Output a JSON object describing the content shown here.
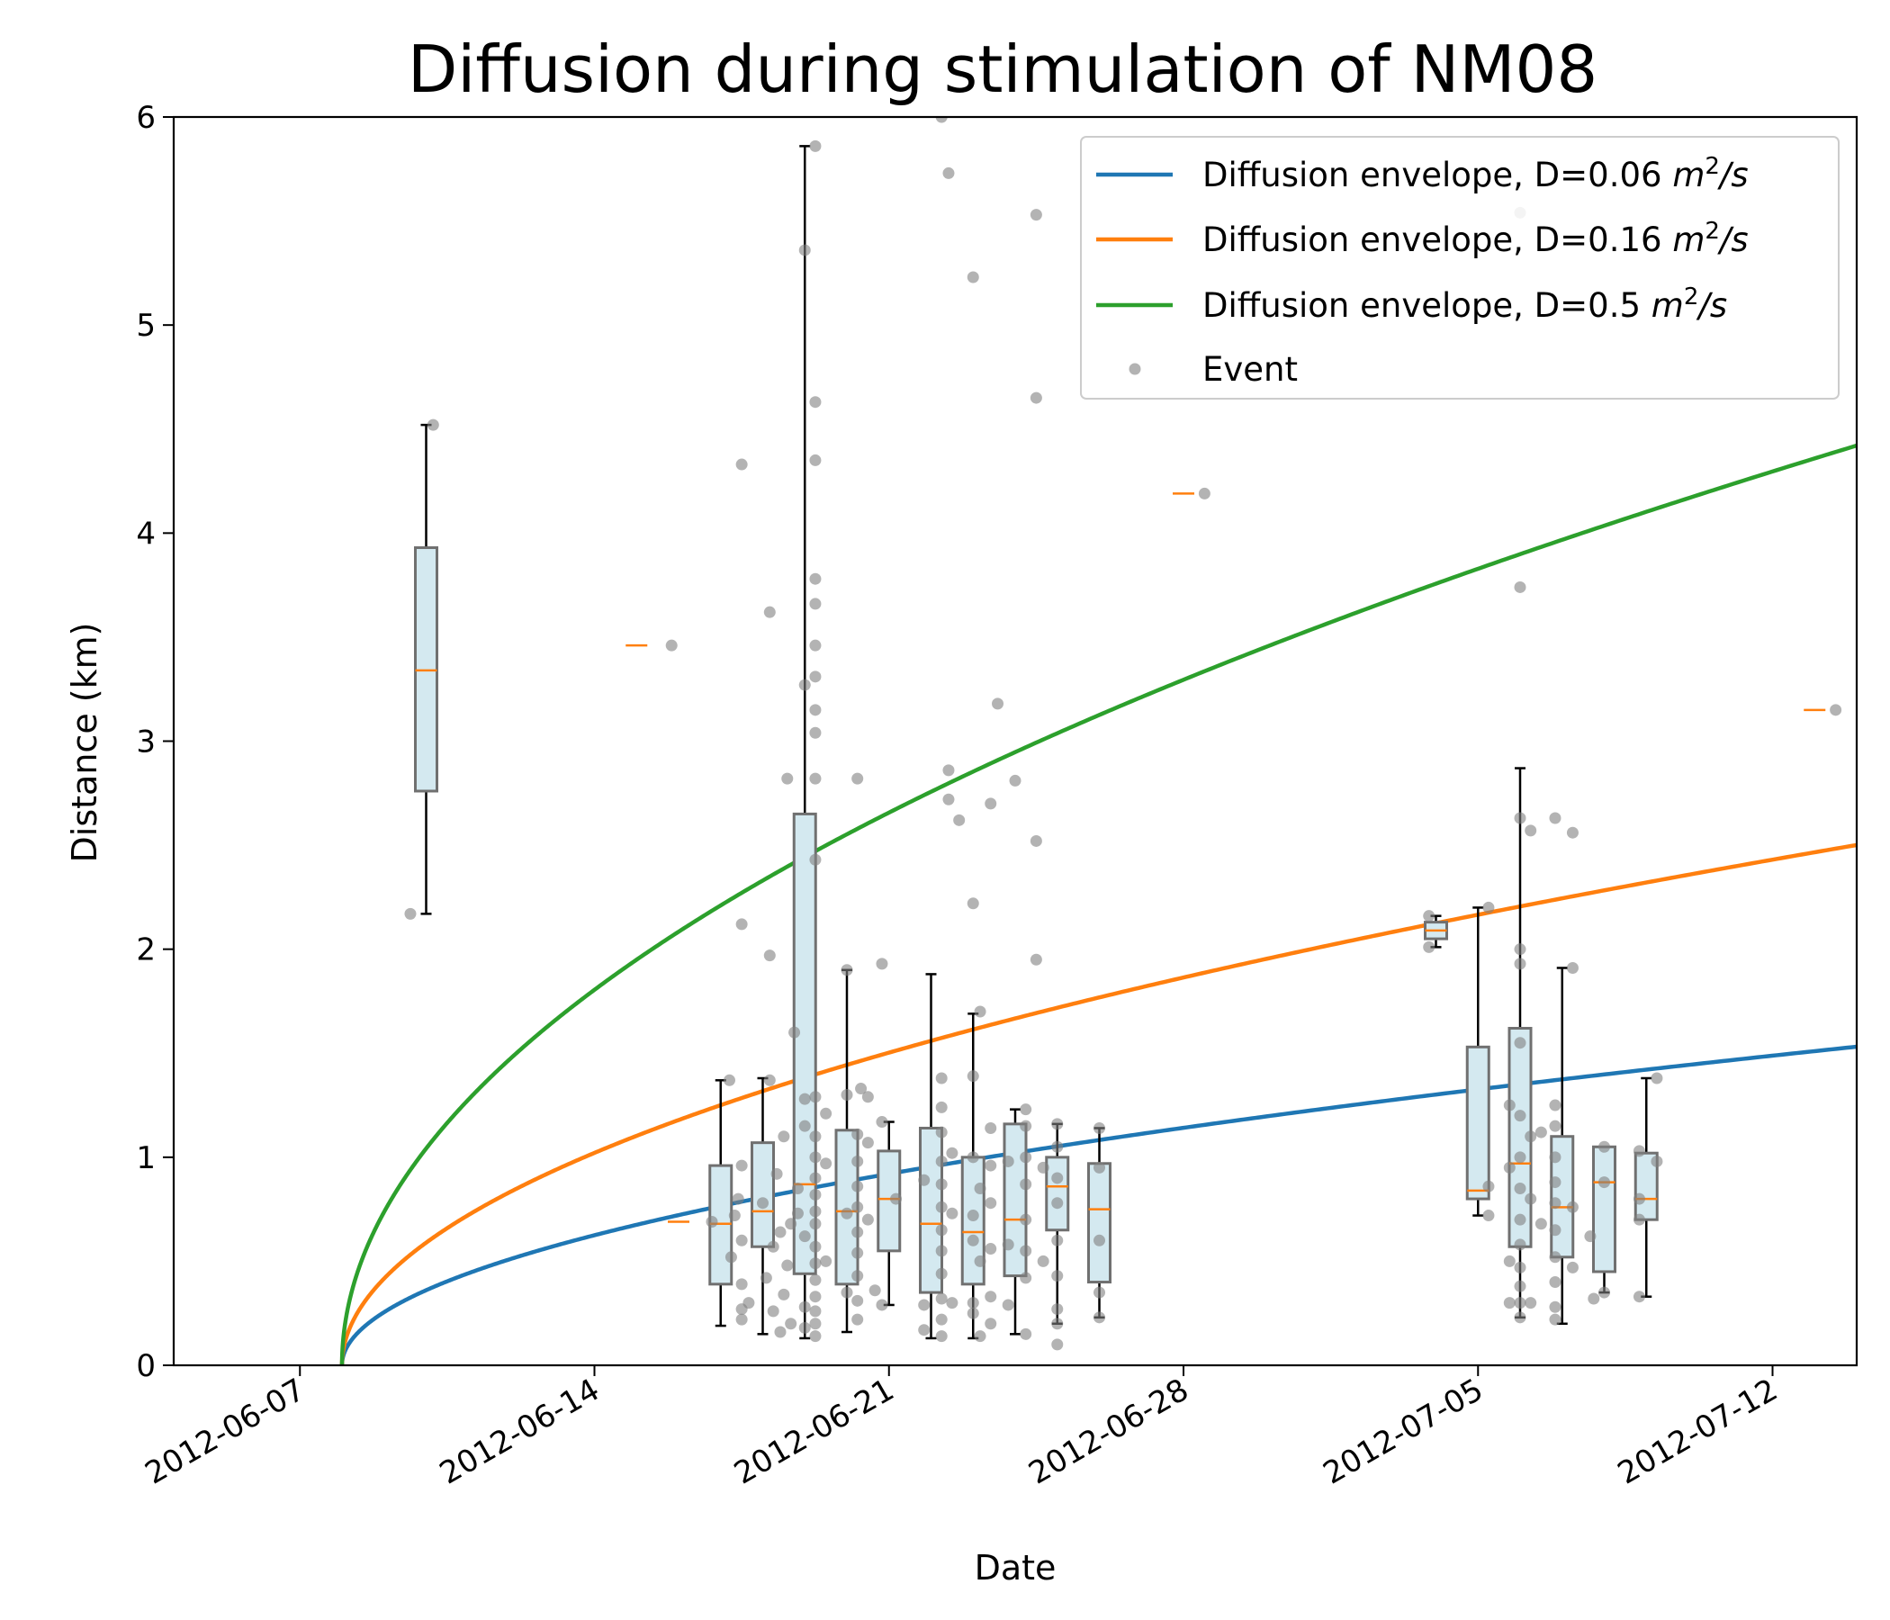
{
  "chart_data": {
    "type": "scatter",
    "title": "Diffusion during stimulation of NM08",
    "xlabel": "Date",
    "ylabel": "Distance (km)",
    "xlim": [
      "2012-06-04",
      "2012-07-14"
    ],
    "ylim": [
      0,
      6
    ],
    "x_ticks": [
      "2012-06-07",
      "2012-06-14",
      "2012-06-21",
      "2012-06-28",
      "2012-07-05",
      "2012-07-12"
    ],
    "y_ticks": [
      "0",
      "1",
      "2",
      "3",
      "4",
      "5",
      "6"
    ],
    "grid": false,
    "legend_position": "top-right",
    "stimulation_start": "2012-06-08",
    "envelopes": [
      {
        "name": "Diffusion envelope, D=0.06",
        "unit": "m",
        "unit_exp": "2",
        "unit_tail": "/s",
        "D": 0.06,
        "color": "#1f77b4"
      },
      {
        "name": "Diffusion envelope, D=0.16",
        "unit": "m",
        "unit_exp": "2",
        "unit_tail": "/s",
        "D": 0.16,
        "color": "#ff7f0e"
      },
      {
        "name": "Diffusion envelope, D=0.5",
        "unit": "m",
        "unit_exp": "2",
        "unit_tail": "/s",
        "D": 0.5,
        "color": "#2ca02c"
      }
    ],
    "event_series": {
      "name": "Event",
      "color": "#808080"
    },
    "boxes": [
      {
        "date": "2012-06-10",
        "min": 2.17,
        "q1": 2.76,
        "median": 3.34,
        "q3": 3.93,
        "max": 4.52
      },
      {
        "date": "2012-06-15",
        "min": 3.46,
        "q1": 3.46,
        "median": 3.46,
        "q3": 3.46,
        "max": 3.46
      },
      {
        "date": "2012-06-16",
        "min": 0.69,
        "q1": 0.69,
        "median": 0.69,
        "q3": 0.69,
        "max": 0.69
      },
      {
        "date": "2012-06-17",
        "min": 0.19,
        "q1": 0.39,
        "median": 0.68,
        "q3": 0.96,
        "max": 1.37
      },
      {
        "date": "2012-06-18",
        "min": 0.15,
        "q1": 0.57,
        "median": 0.74,
        "q3": 1.07,
        "max": 1.38
      },
      {
        "date": "2012-06-19",
        "min": 0.13,
        "q1": 0.44,
        "median": 0.87,
        "q3": 2.65,
        "max": 5.86
      },
      {
        "date": "2012-06-20",
        "min": 0.16,
        "q1": 0.39,
        "median": 0.74,
        "q3": 1.13,
        "max": 1.9
      },
      {
        "date": "2012-06-21",
        "min": 0.29,
        "q1": 0.55,
        "median": 0.8,
        "q3": 1.03,
        "max": 1.17
      },
      {
        "date": "2012-06-22",
        "min": 0.13,
        "q1": 0.35,
        "median": 0.68,
        "q3": 1.14,
        "max": 1.88
      },
      {
        "date": "2012-06-23",
        "min": 0.13,
        "q1": 0.39,
        "median": 0.64,
        "q3": 1.0,
        "max": 1.69
      },
      {
        "date": "2012-06-24",
        "min": 0.15,
        "q1": 0.43,
        "median": 0.7,
        "q3": 1.16,
        "max": 1.23
      },
      {
        "date": "2012-06-25",
        "min": 0.2,
        "q1": 0.65,
        "median": 0.86,
        "q3": 1.0,
        "max": 1.16
      },
      {
        "date": "2012-06-26",
        "min": 0.23,
        "q1": 0.4,
        "median": 0.75,
        "q3": 0.97,
        "max": 1.14
      },
      {
        "date": "2012-06-28",
        "min": 4.19,
        "q1": 4.19,
        "median": 4.19,
        "q3": 4.19,
        "max": 4.19
      },
      {
        "date": "2012-07-04",
        "min": 2.01,
        "q1": 2.05,
        "median": 2.09,
        "q3": 2.13,
        "max": 2.16
      },
      {
        "date": "2012-07-05",
        "min": 0.72,
        "q1": 0.8,
        "median": 0.84,
        "q3": 1.53,
        "max": 2.2
      },
      {
        "date": "2012-07-06",
        "min": 0.23,
        "q1": 0.57,
        "median": 0.97,
        "q3": 1.62,
        "max": 2.87
      },
      {
        "date": "2012-07-07",
        "min": 0.2,
        "q1": 0.52,
        "median": 0.76,
        "q3": 1.1,
        "max": 1.91
      },
      {
        "date": "2012-07-08",
        "min": 0.35,
        "q1": 0.45,
        "median": 0.88,
        "q3": 1.05,
        "max": 1.05
      },
      {
        "date": "2012-07-09",
        "min": 0.33,
        "q1": 0.7,
        "median": 0.8,
        "q3": 1.02,
        "max": 1.38
      },
      {
        "date": "2012-07-13",
        "min": 3.15,
        "q1": 3.15,
        "median": 3.15,
        "q3": 3.15,
        "max": 3.15
      }
    ],
    "events": [
      [
        "2012-06-09 15:00",
        2.17
      ],
      [
        "2012-06-10 04:00",
        4.52
      ],
      [
        "2012-06-15 20:00",
        3.46
      ],
      [
        "2012-06-16 19:00",
        0.69
      ],
      [
        "2012-06-17 05:00",
        1.37
      ],
      [
        "2012-06-17 12:00",
        4.33
      ],
      [
        "2012-06-17 12:00",
        2.12
      ],
      [
        "2012-06-17 12:00",
        0.96
      ],
      [
        "2012-06-17 10:00",
        0.8
      ],
      [
        "2012-06-17 08:00",
        0.72
      ],
      [
        "2012-06-17 12:00",
        0.6
      ],
      [
        "2012-06-17 06:00",
        0.52
      ],
      [
        "2012-06-17 12:00",
        0.39
      ],
      [
        "2012-06-17 12:00",
        0.27
      ],
      [
        "2012-06-17 12:00",
        0.22
      ],
      [
        "2012-06-17 16:00",
        0.3
      ],
      [
        "2012-06-18 04:00",
        1.97
      ],
      [
        "2012-06-18 04:00",
        3.62
      ],
      [
        "2012-06-18 14:00",
        2.82
      ],
      [
        "2012-06-18 04:00",
        1.37
      ],
      [
        "2012-06-18 12:00",
        1.1
      ],
      [
        "2012-06-18 18:00",
        1.6
      ],
      [
        "2012-06-18 08:00",
        0.92
      ],
      [
        "2012-06-18 00:00",
        0.78
      ],
      [
        "2012-06-18 10:00",
        0.64
      ],
      [
        "2012-06-18 06:00",
        0.57
      ],
      [
        "2012-06-18 14:00",
        0.48
      ],
      [
        "2012-06-18 02:00",
        0.42
      ],
      [
        "2012-06-18 12:00",
        0.34
      ],
      [
        "2012-06-18 06:00",
        0.26
      ],
      [
        "2012-06-18 16:00",
        0.2
      ],
      [
        "2012-06-18 10:00",
        0.16
      ],
      [
        "2012-06-18 16:00",
        0.68
      ],
      [
        "2012-06-18 20:00",
        0.85
      ],
      [
        "2012-06-18 20:00",
        0.73
      ],
      [
        "2012-06-19 00:00",
        5.36
      ],
      [
        "2012-06-19 00:00",
        3.27
      ],
      [
        "2012-06-19 00:00",
        1.28
      ],
      [
        "2012-06-19 00:00",
        1.15
      ],
      [
        "2012-06-19 06:00",
        5.86
      ],
      [
        "2012-06-19 06:00",
        4.63
      ],
      [
        "2012-06-19 06:00",
        4.35
      ],
      [
        "2012-06-19 06:00",
        3.78
      ],
      [
        "2012-06-19 06:00",
        3.66
      ],
      [
        "2012-06-19 06:00",
        3.46
      ],
      [
        "2012-06-19 06:00",
        3.31
      ],
      [
        "2012-06-19 06:00",
        3.15
      ],
      [
        "2012-06-19 06:00",
        3.04
      ],
      [
        "2012-06-19 06:00",
        2.82
      ],
      [
        "2012-06-19 06:00",
        2.43
      ],
      [
        "2012-06-19 06:00",
        1.29
      ],
      [
        "2012-06-19 06:00",
        1.1
      ],
      [
        "2012-06-19 06:00",
        1.0
      ],
      [
        "2012-06-19 06:00",
        0.9
      ],
      [
        "2012-06-19 06:00",
        0.82
      ],
      [
        "2012-06-19 06:00",
        0.74
      ],
      [
        "2012-06-19 06:00",
        0.68
      ],
      [
        "2012-06-19 06:00",
        0.57
      ],
      [
        "2012-06-19 06:00",
        0.49
      ],
      [
        "2012-06-19 06:00",
        0.41
      ],
      [
        "2012-06-19 06:00",
        0.33
      ],
      [
        "2012-06-19 06:00",
        0.26
      ],
      [
        "2012-06-19 06:00",
        0.2
      ],
      [
        "2012-06-19 06:00",
        0.14
      ],
      [
        "2012-06-19 00:00",
        0.62
      ],
      [
        "2012-06-19 00:00",
        0.28
      ],
      [
        "2012-06-19 00:00",
        0.18
      ],
      [
        "2012-06-19 12:00",
        1.21
      ],
      [
        "2012-06-19 12:00",
        0.97
      ],
      [
        "2012-06-19 12:00",
        0.5
      ],
      [
        "2012-06-20 00:00",
        1.9
      ],
      [
        "2012-06-20 00:00",
        1.3
      ],
      [
        "2012-06-20 00:00",
        0.35
      ],
      [
        "2012-06-20 06:00",
        2.82
      ],
      [
        "2012-06-20 08:00",
        1.33
      ],
      [
        "2012-06-20 06:00",
        1.11
      ],
      [
        "2012-06-20 06:00",
        0.98
      ],
      [
        "2012-06-20 06:00",
        0.86
      ],
      [
        "2012-06-20 06:00",
        0.76
      ],
      [
        "2012-06-20 06:00",
        0.64
      ],
      [
        "2012-06-20 06:00",
        0.54
      ],
      [
        "2012-06-20 06:00",
        0.43
      ],
      [
        "2012-06-20 06:00",
        0.31
      ],
      [
        "2012-06-20 06:00",
        0.22
      ],
      [
        "2012-06-20 12:00",
        1.29
      ],
      [
        "2012-06-20 12:00",
        1.07
      ],
      [
        "2012-06-20 12:00",
        0.7
      ],
      [
        "2012-06-20 16:00",
        0.36
      ],
      [
        "2012-06-20 00:00",
        0.73
      ],
      [
        "2012-06-20 20:00",
        1.93
      ],
      [
        "2012-06-20 20:00",
        1.17
      ],
      [
        "2012-06-20 20:00",
        0.29
      ],
      [
        "2012-06-21 04:00",
        0.8
      ],
      [
        "2012-06-22 06:00",
        6.0
      ],
      [
        "2012-06-22 10:00",
        5.73
      ],
      [
        "2012-06-22 10:00",
        2.86
      ],
      [
        "2012-06-22 10:00",
        2.72
      ],
      [
        "2012-06-22 16:00",
        2.62
      ],
      [
        "2012-06-22 06:00",
        1.38
      ],
      [
        "2012-06-22 06:00",
        1.24
      ],
      [
        "2012-06-22 06:00",
        1.12
      ],
      [
        "2012-06-22 06:00",
        0.98
      ],
      [
        "2012-06-22 06:00",
        0.87
      ],
      [
        "2012-06-22 06:00",
        0.76
      ],
      [
        "2012-06-22 06:00",
        0.65
      ],
      [
        "2012-06-22 06:00",
        0.55
      ],
      [
        "2012-06-22 06:00",
        0.44
      ],
      [
        "2012-06-22 06:00",
        0.32
      ],
      [
        "2012-06-22 06:00",
        0.22
      ],
      [
        "2012-06-22 06:00",
        0.14
      ],
      [
        "2012-06-22 12:00",
        1.02
      ],
      [
        "2012-06-22 12:00",
        0.73
      ],
      [
        "2012-06-22 12:00",
        0.3
      ],
      [
        "2012-06-21 20:00",
        0.89
      ],
      [
        "2012-06-21 20:00",
        0.29
      ],
      [
        "2012-06-21 20:00",
        0.17
      ],
      [
        "2012-06-23 00:00",
        5.23
      ],
      [
        "2012-06-23 00:00",
        2.22
      ],
      [
        "2012-06-23 00:00",
        1.39
      ],
      [
        "2012-06-23 00:00",
        1.0
      ],
      [
        "2012-06-23 00:00",
        0.72
      ],
      [
        "2012-06-23 00:00",
        0.6
      ],
      [
        "2012-06-23 00:00",
        0.3
      ],
      [
        "2012-06-23 00:00",
        0.25
      ],
      [
        "2012-06-23 04:00",
        1.7
      ],
      [
        "2012-06-23 04:00",
        0.85
      ],
      [
        "2012-06-23 04:00",
        0.5
      ],
      [
        "2012-06-23 04:00",
        0.14
      ],
      [
        "2012-06-23 14:00",
        3.18
      ],
      [
        "2012-06-23 10:00",
        2.7
      ],
      [
        "2012-06-23 10:00",
        1.14
      ],
      [
        "2012-06-23 10:00",
        0.96
      ],
      [
        "2012-06-23 10:00",
        0.78
      ],
      [
        "2012-06-23 10:00",
        0.56
      ],
      [
        "2012-06-23 10:00",
        0.33
      ],
      [
        "2012-06-23 10:00",
        0.2
      ],
      [
        "2012-06-24 00:00",
        2.81
      ],
      [
        "2012-06-23 20:00",
        0.98
      ],
      [
        "2012-06-23 20:00",
        0.58
      ],
      [
        "2012-06-23 20:00",
        0.29
      ],
      [
        "2012-06-24 06:00",
        1.23
      ],
      [
        "2012-06-24 06:00",
        1.15
      ],
      [
        "2012-06-24 06:00",
        1.0
      ],
      [
        "2012-06-24 06:00",
        0.87
      ],
      [
        "2012-06-24 06:00",
        0.7
      ],
      [
        "2012-06-24 06:00",
        0.55
      ],
      [
        "2012-06-24 06:00",
        0.42
      ],
      [
        "2012-06-24 06:00",
        0.15
      ],
      [
        "2012-06-24 12:00",
        5.53
      ],
      [
        "2012-06-24 12:00",
        4.65
      ],
      [
        "2012-06-24 12:00",
        2.52
      ],
      [
        "2012-06-24 12:00",
        1.95
      ],
      [
        "2012-06-25 00:00",
        1.16
      ],
      [
        "2012-06-25 00:00",
        1.05
      ],
      [
        "2012-06-25 00:00",
        0.9
      ],
      [
        "2012-06-25 00:00",
        0.78
      ],
      [
        "2012-06-25 00:00",
        0.6
      ],
      [
        "2012-06-25 00:00",
        0.43
      ],
      [
        "2012-06-25 00:00",
        0.27
      ],
      [
        "2012-06-25 00:00",
        0.2
      ],
      [
        "2012-06-25 00:00",
        0.1
      ],
      [
        "2012-06-24 16:00",
        0.95
      ],
      [
        "2012-06-24 16:00",
        0.5
      ],
      [
        "2012-06-26 00:00",
        1.14
      ],
      [
        "2012-06-26 00:00",
        0.95
      ],
      [
        "2012-06-26 00:00",
        0.6
      ],
      [
        "2012-06-26 00:00",
        0.35
      ],
      [
        "2012-06-26 00:00",
        0.23
      ],
      [
        "2012-06-28 12:00",
        4.19
      ],
      [
        "2012-07-03 20:00",
        2.16
      ],
      [
        "2012-07-03 20:00",
        2.01
      ],
      [
        "2012-07-05 06:00",
        2.2
      ],
      [
        "2012-07-05 06:00",
        0.86
      ],
      [
        "2012-07-05 06:00",
        0.72
      ],
      [
        "2012-07-06 00:00",
        3.74
      ],
      [
        "2012-07-06 00:00",
        5.54
      ],
      [
        "2012-07-06 00:00",
        2.63
      ],
      [
        "2012-07-06 00:00",
        2.0
      ],
      [
        "2012-07-06 00:00",
        1.93
      ],
      [
        "2012-07-06 00:00",
        1.55
      ],
      [
        "2012-07-06 00:00",
        1.2
      ],
      [
        "2012-07-06 00:00",
        1.0
      ],
      [
        "2012-07-06 00:00",
        0.85
      ],
      [
        "2012-07-06 00:00",
        0.7
      ],
      [
        "2012-07-06 00:00",
        0.58
      ],
      [
        "2012-07-06 00:00",
        0.47
      ],
      [
        "2012-07-06 00:00",
        0.38
      ],
      [
        "2012-07-06 00:00",
        0.3
      ],
      [
        "2012-07-06 00:00",
        0.23
      ],
      [
        "2012-07-05 18:00",
        1.25
      ],
      [
        "2012-07-05 18:00",
        0.95
      ],
      [
        "2012-07-05 18:00",
        0.5
      ],
      [
        "2012-07-05 18:00",
        0.3
      ],
      [
        "2012-07-06 06:00",
        2.57
      ],
      [
        "2012-07-06 06:00",
        1.1
      ],
      [
        "2012-07-06 06:00",
        0.8
      ],
      [
        "2012-07-06 06:00",
        0.3
      ],
      [
        "2012-07-06 20:00",
        2.63
      ],
      [
        "2012-07-06 20:00",
        1.25
      ],
      [
        "2012-07-06 20:00",
        1.15
      ],
      [
        "2012-07-06 20:00",
        1.0
      ],
      [
        "2012-07-06 20:00",
        0.88
      ],
      [
        "2012-07-06 20:00",
        0.78
      ],
      [
        "2012-07-06 20:00",
        0.65
      ],
      [
        "2012-07-06 20:00",
        0.52
      ],
      [
        "2012-07-06 20:00",
        0.4
      ],
      [
        "2012-07-06 20:00",
        0.28
      ],
      [
        "2012-07-06 20:00",
        0.22
      ],
      [
        "2012-07-06 12:00",
        1.12
      ],
      [
        "2012-07-06 12:00",
        0.68
      ],
      [
        "2012-07-07 06:00",
        2.56
      ],
      [
        "2012-07-07 06:00",
        1.91
      ],
      [
        "2012-07-07 06:00",
        0.76
      ],
      [
        "2012-07-07 06:00",
        0.47
      ],
      [
        "2012-07-07 16:00",
        0.62
      ],
      [
        "2012-07-07 18:00",
        0.32
      ],
      [
        "2012-07-08 00:00",
        1.05
      ],
      [
        "2012-07-08 00:00",
        0.88
      ],
      [
        "2012-07-08 00:00",
        0.35
      ],
      [
        "2012-07-08 20:00",
        1.03
      ],
      [
        "2012-07-08 20:00",
        0.8
      ],
      [
        "2012-07-08 20:00",
        0.7
      ],
      [
        "2012-07-08 20:00",
        0.33
      ],
      [
        "2012-07-09 06:00",
        1.38
      ],
      [
        "2012-07-09 06:00",
        0.98
      ],
      [
        "2012-07-13 12:00",
        3.15
      ]
    ]
  }
}
